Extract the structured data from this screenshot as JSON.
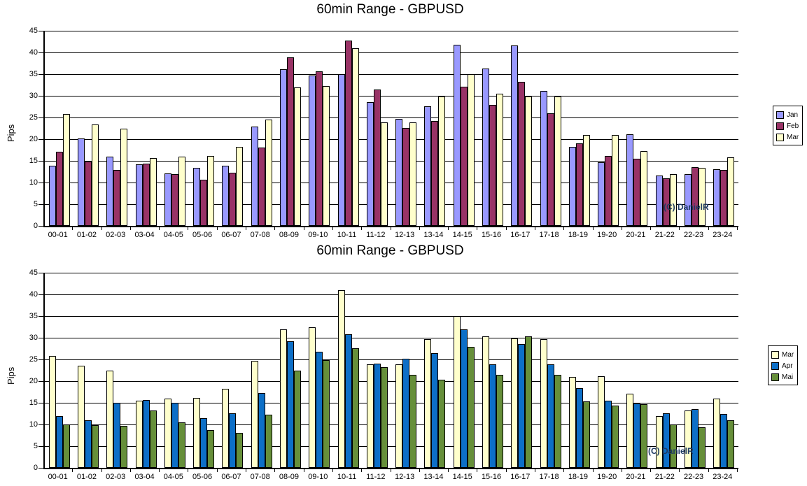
{
  "page": {
    "background": "#FFFFFF"
  },
  "chart_data": [
    {
      "type": "bar",
      "title": "60min Range - GBPUSD",
      "ylabel": "Pips",
      "xlabel": "",
      "ylim": [
        0,
        45
      ],
      "ytick_step": 5,
      "grid": true,
      "legend_position": "right",
      "annotation": "(C) DanielR",
      "categories": [
        "00-01",
        "01-02",
        "02-03",
        "03-04",
        "04-05",
        "05-06",
        "06-07",
        "07-08",
        "08-09",
        "09-10",
        "10-11",
        "11-12",
        "12-13",
        "13-14",
        "14-15",
        "15-16",
        "16-17",
        "17-18",
        "18-19",
        "19-20",
        "20-21",
        "21-22",
        "22-23",
        "23-24"
      ],
      "series": [
        {
          "name": "Jan",
          "color": "#9999FF",
          "values": [
            13.8,
            20.1,
            16.0,
            14.2,
            12.1,
            13.4,
            13.9,
            22.9,
            36.2,
            34.7,
            35.0,
            28.6,
            24.7,
            27.6,
            41.8,
            36.3,
            41.6,
            31.2,
            18.3,
            14.7,
            21.2,
            11.6,
            12.0,
            13.1
          ]
        },
        {
          "name": "Feb",
          "color": "#993366",
          "values": [
            17.1,
            14.8,
            12.9,
            14.4,
            11.9,
            10.7,
            12.2,
            18.1,
            38.8,
            35.7,
            42.7,
            31.5,
            22.6,
            24.2,
            32.1,
            27.9,
            33.3,
            25.9,
            19.0,
            16.2,
            15.5,
            10.9,
            13.6,
            12.9
          ]
        },
        {
          "name": "Mar",
          "color": "#FFFFCC",
          "values": [
            25.8,
            23.4,
            22.4,
            15.6,
            16.0,
            16.2,
            18.2,
            24.5,
            32.0,
            32.3,
            40.9,
            23.9,
            23.8,
            29.8,
            35.0,
            30.5,
            29.8,
            29.8,
            20.9,
            20.9,
            17.3,
            12.0,
            13.4,
            15.8
          ]
        }
      ]
    },
    {
      "type": "bar",
      "title": "60min Range - GBPUSD",
      "ylabel": "Pips",
      "xlabel": "",
      "ylim": [
        0,
        45
      ],
      "ytick_step": 5,
      "grid": true,
      "legend_position": "right",
      "annotation": "(C) DanielR",
      "categories": [
        "00-01",
        "01-02",
        "02-03",
        "03-04",
        "04-05",
        "05-06",
        "06-07",
        "07-08",
        "08-09",
        "09-10",
        "10-11",
        "11-12",
        "12-13",
        "13-14",
        "14-15",
        "15-16",
        "16-17",
        "17-18",
        "18-19",
        "19-20",
        "20-21",
        "21-22",
        "22-23",
        "23-24"
      ],
      "series": [
        {
          "name": "Mar",
          "color": "#FFFFCC",
          "values": [
            25.8,
            23.5,
            22.4,
            15.5,
            15.9,
            16.2,
            18.2,
            24.6,
            32.0,
            32.4,
            41.0,
            23.9,
            23.9,
            29.7,
            35.0,
            30.4,
            29.9,
            29.7,
            21.0,
            21.1,
            17.1,
            12.0,
            13.3,
            16.0
          ]
        },
        {
          "name": "Apr",
          "color": "#0D6FC7",
          "values": [
            12.0,
            11.0,
            15.0,
            15.7,
            15.0,
            11.5,
            12.5,
            17.2,
            29.2,
            26.8,
            30.8,
            24.1,
            25.1,
            26.4,
            32.0,
            23.8,
            28.6,
            23.9,
            18.4,
            15.5,
            14.9,
            12.5,
            13.5,
            12.4
          ]
        },
        {
          "name": "Mai",
          "color": "#668F3A",
          "values": [
            10.0,
            9.9,
            9.6,
            13.2,
            10.5,
            8.7,
            8.0,
            12.2,
            22.4,
            24.9,
            27.6,
            23.2,
            21.4,
            20.3,
            27.9,
            21.5,
            30.3,
            21.4,
            15.4,
            14.3,
            14.7,
            10.0,
            9.3,
            11.0
          ]
        }
      ]
    }
  ]
}
